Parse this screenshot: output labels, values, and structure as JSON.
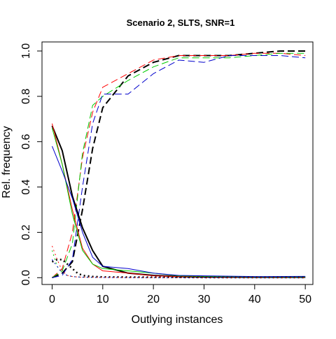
{
  "chart_data": {
    "type": "line",
    "title": "Scenario 2, SLTS, SNR=1",
    "xlabel": "Outlying instances",
    "ylabel": "Rel. frequency",
    "xlim": [
      -2,
      51.5
    ],
    "ylim": [
      -0.03,
      1.04
    ],
    "xticks": [
      0,
      10,
      20,
      30,
      40,
      50
    ],
    "yticks": [
      0.0,
      0.2,
      0.4,
      0.6,
      0.8,
      1.0
    ],
    "xtick_labels": [
      "0",
      "10",
      "20",
      "30",
      "40",
      "50"
    ],
    "ytick_labels": [
      "0.0",
      "0.2",
      "0.4",
      "0.6",
      "0.8",
      "1.0"
    ],
    "grid": false,
    "legend": "none",
    "series": [
      {
        "color": "#000000",
        "dash": "long",
        "width": 2,
        "x": [
          0,
          2,
          4,
          6,
          8,
          10,
          15,
          20,
          25,
          30,
          35,
          40,
          45,
          50
        ],
        "y": [
          0.0,
          0.02,
          0.07,
          0.3,
          0.57,
          0.75,
          0.89,
          0.95,
          0.98,
          0.98,
          0.98,
          0.99,
          1.0,
          1.0
        ]
      },
      {
        "color": "#ff0000",
        "dash": "long",
        "width": 1,
        "x": [
          0,
          2,
          4,
          6,
          8,
          10,
          15,
          20,
          25,
          30,
          35,
          40,
          45,
          50
        ],
        "y": [
          0.0,
          0.04,
          0.2,
          0.53,
          0.73,
          0.84,
          0.9,
          0.96,
          0.98,
          0.98,
          0.98,
          0.99,
          0.99,
          0.98
        ]
      },
      {
        "color": "#00cc00",
        "dash": "long",
        "width": 1,
        "x": [
          0,
          2,
          4,
          6,
          8,
          10,
          15,
          20,
          25,
          30,
          35,
          40,
          45,
          50
        ],
        "y": [
          0.0,
          0.03,
          0.15,
          0.55,
          0.76,
          0.8,
          0.87,
          0.93,
          0.97,
          0.97,
          0.97,
          0.98,
          0.99,
          0.99
        ]
      },
      {
        "color": "#0000cc",
        "dash": "long",
        "width": 1,
        "x": [
          0,
          2,
          4,
          6,
          8,
          10,
          15,
          20,
          25,
          30,
          35,
          40,
          45,
          50
        ],
        "y": [
          0.0,
          0.01,
          0.08,
          0.4,
          0.68,
          0.81,
          0.81,
          0.9,
          0.96,
          0.95,
          0.98,
          0.98,
          0.98,
          0.97
        ]
      },
      {
        "color": "#000000",
        "dash": "solid",
        "width": 2,
        "x": [
          0,
          2,
          4,
          6,
          8,
          10,
          15,
          20,
          25,
          30,
          40,
          50
        ],
        "y": [
          0.67,
          0.56,
          0.36,
          0.22,
          0.12,
          0.05,
          0.02,
          0.01,
          0.005,
          0.003,
          0.002,
          0.002
        ]
      },
      {
        "color": "#ff0000",
        "dash": "solid",
        "width": 1,
        "x": [
          0,
          2,
          4,
          6,
          8,
          10,
          15,
          20,
          25,
          30,
          40,
          50
        ],
        "y": [
          0.68,
          0.5,
          0.3,
          0.13,
          0.06,
          0.03,
          0.02,
          0.008,
          0.005,
          0.005,
          0.003,
          0.003
        ]
      },
      {
        "color": "#00cc00",
        "dash": "solid",
        "width": 1,
        "x": [
          0,
          2,
          4,
          6,
          8,
          10,
          15,
          20,
          25,
          30,
          40,
          50
        ],
        "y": [
          0.66,
          0.5,
          0.28,
          0.12,
          0.06,
          0.04,
          0.03,
          0.02,
          0.008,
          0.006,
          0.004,
          0.004
        ]
      },
      {
        "color": "#0000cc",
        "dash": "solid",
        "width": 1,
        "x": [
          0,
          2,
          4,
          6,
          8,
          10,
          15,
          20,
          25,
          30,
          40,
          50
        ],
        "y": [
          0.58,
          0.47,
          0.35,
          0.2,
          0.09,
          0.05,
          0.04,
          0.02,
          0.01,
          0.008,
          0.005,
          0.006
        ]
      },
      {
        "color": "#000000",
        "dash": "dotted",
        "width": 2.5,
        "x": [
          0,
          1,
          2,
          3,
          4,
          5,
          6,
          8,
          10,
          20,
          30,
          40,
          50
        ],
        "y": [
          0.07,
          0.08,
          0.08,
          0.06,
          0.04,
          0.02,
          0.01,
          0.005,
          0.003,
          0.002,
          0.001,
          0.001,
          0.001
        ]
      },
      {
        "color": "#ff0000",
        "dash": "dotted",
        "width": 1,
        "x": [
          0,
          1,
          2,
          3,
          4,
          6,
          10,
          20,
          50
        ],
        "y": [
          0.14,
          0.08,
          0.03,
          0.01,
          0.005,
          0.002,
          0.001,
          0.0,
          0.0
        ]
      },
      {
        "color": "#00cc00",
        "dash": "dotted",
        "width": 1,
        "x": [
          0,
          1,
          2,
          3,
          4,
          6,
          10,
          20,
          50
        ],
        "y": [
          0.12,
          0.05,
          0.02,
          0.01,
          0.005,
          0.002,
          0.001,
          0.0,
          0.0
        ]
      },
      {
        "color": "#0000cc",
        "dash": "dotted",
        "width": 1,
        "x": [
          0,
          1,
          2,
          3,
          4,
          6,
          10,
          20,
          50
        ],
        "y": [
          0.08,
          0.05,
          0.02,
          0.01,
          0.005,
          0.002,
          0.001,
          0.0,
          0.0
        ]
      }
    ]
  }
}
